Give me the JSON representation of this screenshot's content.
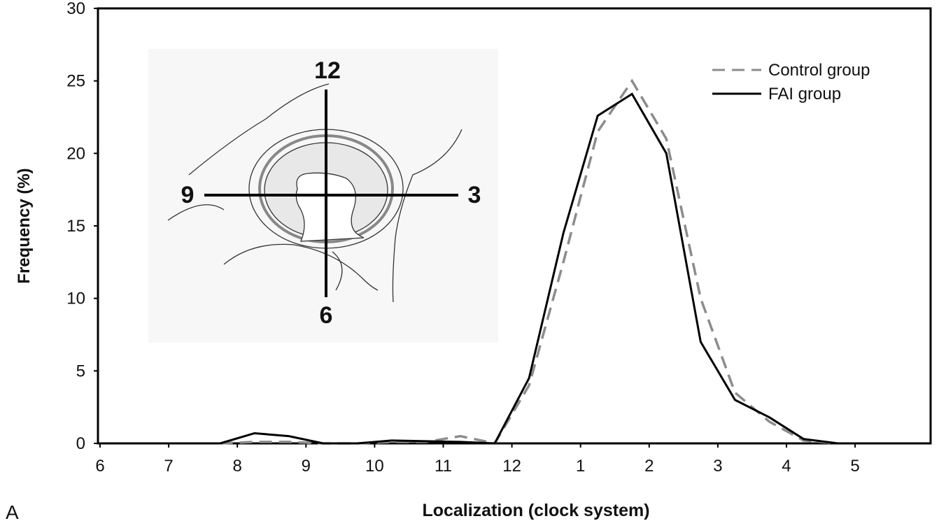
{
  "chart_data": {
    "type": "line",
    "title": null,
    "panel_label": "A",
    "x_label": "Localization (clock system)",
    "y_label": "Frequency (%)",
    "x": [
      1.75,
      2.25,
      2.75,
      3.25,
      3.75,
      4.25,
      4.75,
      5.25,
      5.75,
      6.25,
      6.75,
      7.25,
      7.75,
      8.25,
      8.75,
      9.25,
      9.75,
      10.25,
      10.75
    ],
    "series": [
      {
        "name": "Control group",
        "color": "#8c8c8c",
        "dash": true,
        "values": [
          0,
          0.1,
          0.1,
          0,
          0,
          0.1,
          0.1,
          0.5,
          0,
          4,
          12.5,
          21.5,
          25,
          21,
          10,
          3.5,
          1.5,
          0.2,
          0
        ]
      },
      {
        "name": "FAI group",
        "color": "#000000",
        "dash": false,
        "values": [
          0,
          0.7,
          0.5,
          0,
          0,
          0.2,
          0.15,
          0.1,
          0,
          4.5,
          14.5,
          22.6,
          24.1,
          20,
          7,
          3,
          1.8,
          0.3,
          0
        ]
      }
    ],
    "xlim": [
      0,
      12.1
    ],
    "xticks": [
      {
        "value": 0,
        "label": "6"
      },
      {
        "value": 1,
        "label": "7"
      },
      {
        "value": 2,
        "label": "8"
      },
      {
        "value": 3,
        "label": "9"
      },
      {
        "value": 4,
        "label": "10"
      },
      {
        "value": 5,
        "label": "11"
      },
      {
        "value": 6,
        "label": "12"
      },
      {
        "value": 7,
        "label": "1"
      },
      {
        "value": 8,
        "label": "2"
      },
      {
        "value": 9,
        "label": "3"
      },
      {
        "value": 10,
        "label": "4"
      },
      {
        "value": 11,
        "label": "5"
      }
    ],
    "ylim": [
      0,
      30
    ],
    "yticks": [
      0,
      5,
      10,
      15,
      20,
      25,
      30
    ],
    "legend": "top-right",
    "inset": {
      "labels": [
        "12",
        "9",
        "3",
        "6"
      ]
    }
  }
}
